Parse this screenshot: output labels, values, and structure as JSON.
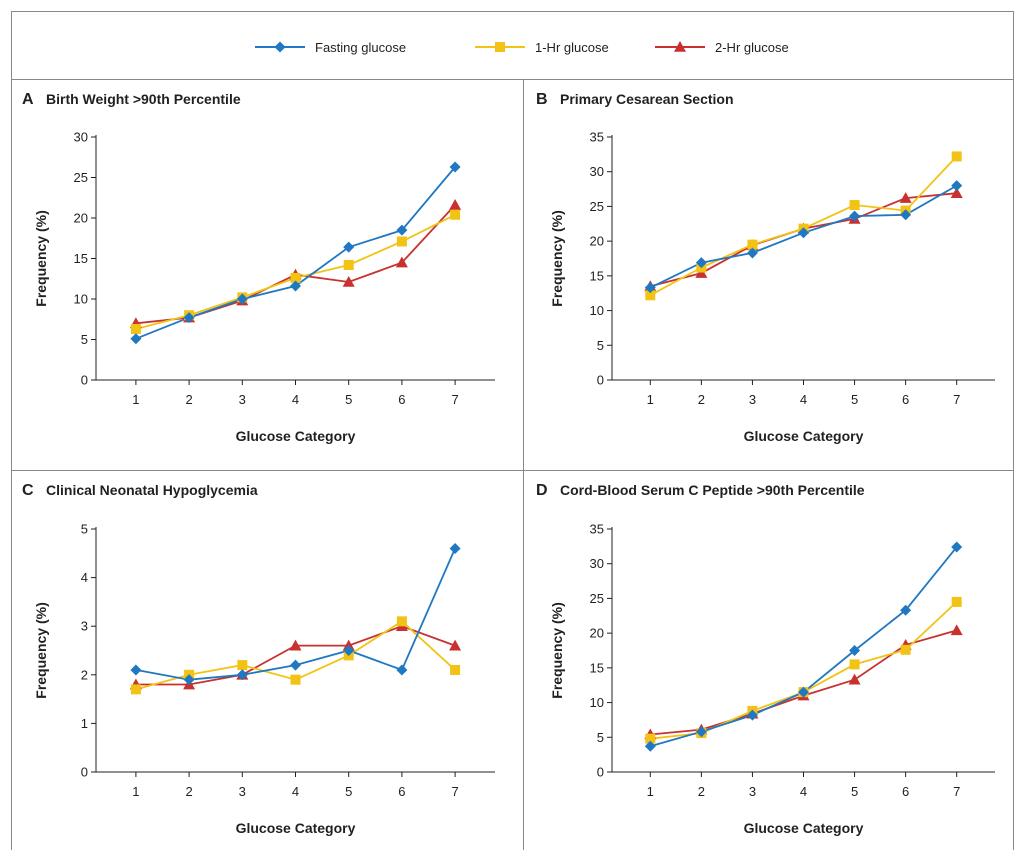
{
  "legend": {
    "items": [
      {
        "label": "Fasting glucose",
        "color": "#1f78c1",
        "marker": "diamond"
      },
      {
        "label": "1-Hr glucose",
        "color": "#f2c314",
        "marker": "square"
      },
      {
        "label": "2-Hr glucose",
        "color": "#c8312e",
        "marker": "triangle"
      }
    ]
  },
  "chart_data": [
    {
      "type": "line",
      "panel": "A",
      "title": "Birth Weight >90th Percentile",
      "xlabel": "Glucose Category",
      "ylabel": "Frequency (%)",
      "x": [
        1,
        2,
        3,
        4,
        5,
        6,
        7
      ],
      "ylim": [
        0,
        30
      ],
      "yticks": [
        0,
        5,
        10,
        15,
        20,
        25,
        30
      ],
      "series": [
        {
          "name": "Fasting glucose",
          "values": [
            5.1,
            7.7,
            10.0,
            11.6,
            16.4,
            18.5,
            26.3
          ]
        },
        {
          "name": "1-Hr glucose",
          "values": [
            6.3,
            8.0,
            10.2,
            12.6,
            14.2,
            17.1,
            20.4
          ]
        },
        {
          "name": "2-Hr glucose",
          "values": [
            7.0,
            7.7,
            9.8,
            13.0,
            12.1,
            14.5,
            21.6
          ]
        }
      ]
    },
    {
      "type": "line",
      "panel": "B",
      "title": "Primary Cesarean Section",
      "xlabel": "Glucose Category",
      "ylabel": "Frequency (%)",
      "x": [
        1,
        2,
        3,
        4,
        5,
        6,
        7
      ],
      "ylim": [
        0,
        35
      ],
      "yticks": [
        0,
        5,
        10,
        15,
        20,
        25,
        30,
        35
      ],
      "series": [
        {
          "name": "Fasting glucose",
          "values": [
            13.3,
            16.9,
            18.3,
            21.2,
            23.6,
            23.8,
            28.0
          ]
        },
        {
          "name": "1-Hr glucose",
          "values": [
            12.2,
            16.2,
            19.5,
            21.8,
            25.2,
            24.4,
            32.2
          ]
        },
        {
          "name": "2-Hr glucose",
          "values": [
            13.5,
            15.4,
            19.4,
            21.8,
            23.2,
            26.2,
            26.9
          ]
        }
      ]
    },
    {
      "type": "line",
      "panel": "C",
      "title": "Clinical Neonatal Hypoglycemia",
      "xlabel": "Glucose Category",
      "ylabel": "Frequency (%)",
      "x": [
        1,
        2,
        3,
        4,
        5,
        6,
        7
      ],
      "ylim": [
        0,
        5
      ],
      "yticks": [
        0,
        1,
        2,
        3,
        4,
        5
      ],
      "series": [
        {
          "name": "Fasting glucose",
          "values": [
            2.1,
            1.9,
            2.0,
            2.2,
            2.5,
            2.1,
            4.6
          ]
        },
        {
          "name": "1-Hr glucose",
          "values": [
            1.7,
            2.0,
            2.2,
            1.9,
            2.4,
            3.1,
            2.1
          ]
        },
        {
          "name": "2-Hr glucose",
          "values": [
            1.8,
            1.8,
            2.0,
            2.6,
            2.6,
            3.0,
            2.6
          ]
        }
      ]
    },
    {
      "type": "line",
      "panel": "D",
      "title": "Cord-Blood Serum C Peptide >90th Percentile",
      "xlabel": "Glucose Category",
      "ylabel": "Frequency (%)",
      "x": [
        1,
        2,
        3,
        4,
        5,
        6,
        7
      ],
      "ylim": [
        0,
        35
      ],
      "yticks": [
        0,
        5,
        10,
        15,
        20,
        25,
        30,
        35
      ],
      "series": [
        {
          "name": "Fasting glucose",
          "values": [
            3.7,
            5.8,
            8.2,
            11.5,
            17.5,
            23.3,
            32.4
          ]
        },
        {
          "name": "1-Hr glucose",
          "values": [
            4.8,
            5.6,
            8.8,
            11.5,
            15.5,
            17.6,
            24.5
          ]
        },
        {
          "name": "2-Hr glucose",
          "values": [
            5.4,
            6.1,
            8.4,
            11.0,
            13.3,
            18.3,
            20.4
          ]
        }
      ]
    }
  ]
}
